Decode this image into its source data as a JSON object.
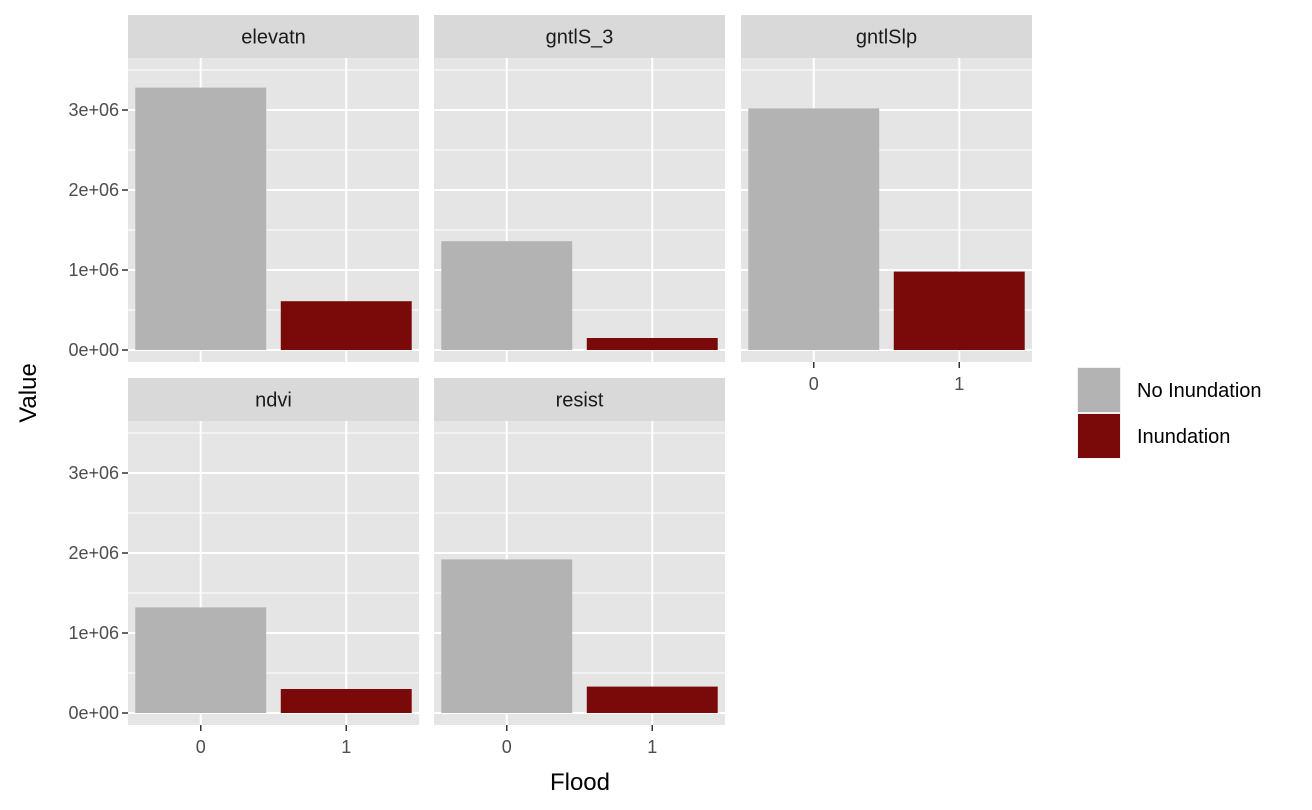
{
  "chart_data": {
    "type": "bar",
    "facet_layout": "wrap 3 columns",
    "xlabel": "Flood",
    "ylabel": "Value",
    "categories": [
      "0",
      "1"
    ],
    "ylim": [
      -150000,
      3650000
    ],
    "yticks": [
      0,
      1000000,
      2000000,
      3000000
    ],
    "ytick_labels": [
      "0e+00",
      "1e+06",
      "2e+06",
      "3e+06"
    ],
    "grid": true,
    "legend_position": "right",
    "series_names": [
      "No Inundation",
      "Inundation"
    ],
    "colors": {
      "No Inundation": "#b3b3b3",
      "Inundation": "#7a0a0a",
      "panel_bg": "#e5e5e5",
      "strip_bg": "#d9d9d9",
      "grid": "#ffffff"
    },
    "panels": [
      {
        "name": "elevatn",
        "values": [
          3280000,
          610000
        ]
      },
      {
        "name": "gntlS_3",
        "values": [
          1360000,
          150000
        ]
      },
      {
        "name": "gntlSlp",
        "values": [
          3020000,
          980000
        ]
      },
      {
        "name": "ndvi",
        "values": [
          1320000,
          300000
        ]
      },
      {
        "name": "resist",
        "values": [
          1920000,
          330000
        ]
      }
    ]
  }
}
